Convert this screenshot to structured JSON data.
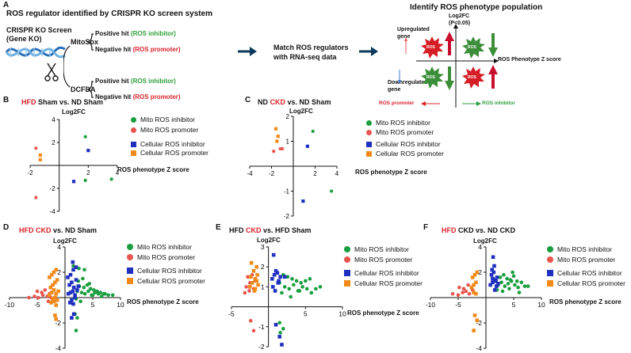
{
  "panel_a": {
    "letter": "A",
    "title": "ROS regulator identified by CRISPR KO screen system",
    "screen_label_1": "CRISPR KO Screen",
    "screen_label_2": "(Gene KO)",
    "assay_1": "MitoSox",
    "assay_2": "DCFDA",
    "pos_hit": "Positive hit",
    "neg_hit": "Negative hit",
    "inhibitor_tag": "(ROS inhibitor)",
    "promoter_tag": "(ROS promoter)",
    "match_1": "Match ROS regulators",
    "match_2": "with RNA-seq data",
    "identify_title": "Identify ROS phenotype population",
    "log2fc": "Log2FC",
    "pval": "(P<0.05)",
    "up_1": "Upregulated",
    "up_2": "gene",
    "down_1": "Downregulated",
    "down_2": "gene",
    "x_axis": "ROS Phenotype Z score",
    "ros_badge": "ROS",
    "ros_promoter": "ROS promoter",
    "ros_inhibitor": "ROS inhibitor"
  },
  "legend": {
    "mito_inhibitor": "Mito ROS inhibitor",
    "mito_promoter": "Mito ROS promoter",
    "cell_inhibitor": "Cellular ROS inhibitor",
    "cell_promoter": "Cellular ROS promoter"
  },
  "colors": {
    "mito_inhibitor": "#1a9e3f",
    "mito_promoter": "#e8554e",
    "cell_inhibitor": "#1f2fc0",
    "cell_promoter": "#f28a1a",
    "red": "#d8232a"
  },
  "panels": {
    "B": {
      "letter": "B",
      "title_a": "HFD",
      "title_b": " Sham vs. ND Sham",
      "ylabel": "Log2FC",
      "xlabel": "ROS phenotype Z score"
    },
    "C": {
      "letter": "C",
      "title_a": "ND ",
      "title_b": "CKD",
      "title_c": " vs. ND Sham",
      "ylabel": "Log2FC",
      "xlabel": "ROS phenotype Z score"
    },
    "D": {
      "letter": "D",
      "title_a": "HFD CKD",
      "title_b": " vs. ND Sham",
      "ylabel": "Log2FC",
      "xlabel": "ROS phenotype Z score"
    },
    "E": {
      "letter": "E",
      "title_a": "HFD ",
      "title_b": "CKD",
      "title_c": " vs. HFD Sham",
      "ylabel": "Log2FC",
      "xlabel": "ROS phenotype Z score"
    },
    "F": {
      "letter": "F",
      "title_a": "HFD",
      "title_b": " CKD vs. ND CKD",
      "ylabel": "Log2FC",
      "xlabel": "ROS phenotype Z score"
    }
  },
  "chart_data": [
    {
      "panel": "B",
      "type": "scatter",
      "xlim": [
        -2,
        4
      ],
      "ylim": [
        -4,
        4
      ],
      "xticks": [
        "-2",
        "2",
        "4"
      ],
      "yticks": [
        "4",
        "2",
        "-2",
        "-4"
      ],
      "series": [
        {
          "name": "Mito ROS inhibitor",
          "x": [
            1.8,
            1.8,
            3.6
          ],
          "y": [
            2.5,
            -1.3,
            -1.2
          ]
        },
        {
          "name": "Mito ROS promoter",
          "x": [
            -1.6,
            -1.6
          ],
          "y": [
            1.5,
            -2.8
          ]
        },
        {
          "name": "Cellular ROS inhibitor",
          "x": [
            2.0,
            1.0
          ],
          "y": [
            1.3,
            -1.4
          ]
        },
        {
          "name": "Cellular ROS promoter",
          "x": [
            -1.3,
            -1.3
          ],
          "y": [
            0.9,
            0.5
          ]
        }
      ]
    },
    {
      "panel": "C",
      "type": "scatter",
      "xlim": [
        -4,
        4
      ],
      "ylim": [
        -2,
        2
      ],
      "xticks": [
        "-4",
        "-2",
        "2",
        "4"
      ],
      "yticks": [
        "2",
        "1",
        "-1",
        "-2"
      ],
      "series": [
        {
          "name": "Mito ROS inhibitor",
          "x": [
            1.8,
            3.5
          ],
          "y": [
            1.4,
            -1.0
          ]
        },
        {
          "name": "Mito ROS promoter",
          "x": [
            -1.8,
            -1.2,
            -1.0
          ],
          "y": [
            0.6,
            0.7,
            0.7
          ]
        },
        {
          "name": "Cellular ROS inhibitor",
          "x": [
            1.3,
            0.9
          ],
          "y": [
            0.8,
            -1.4
          ]
        },
        {
          "name": "Cellular ROS promoter",
          "x": [
            -1.6,
            -1.4,
            -1.5
          ],
          "y": [
            1.5,
            1.2,
            1.0
          ]
        }
      ]
    },
    {
      "panel": "D",
      "type": "scatter",
      "xlim": [
        -10,
        10
      ],
      "ylim": [
        -4,
        4
      ],
      "xticks": [
        "-10",
        "-5",
        "5",
        "10"
      ],
      "yticks": [
        "4",
        "2",
        "-2",
        "-4"
      ],
      "series": [
        {
          "name": "Mito ROS inhibitor",
          "x": [
            2.2,
            3.0,
            3.6,
            4.2,
            4.8,
            5.4,
            6.0,
            6.6,
            7.2,
            7.8,
            2.6,
            3.4,
            4.0,
            4.6,
            5.2,
            5.8,
            6.4,
            7.0,
            8.6,
            2.4,
            3.2,
            4.4,
            5.0,
            2.0,
            2.8,
            1.5,
            2.5,
            3.5,
            1.8,
            2.2,
            2.0
          ],
          "y": [
            0.5,
            0.4,
            0.3,
            0.5,
            0.2,
            0.4,
            0.3,
            0.1,
            0.3,
            0.2,
            0.9,
            0.8,
            1.0,
            0.7,
            0.6,
            0.5,
            0.4,
            0.3,
            0.2,
            1.3,
            1.5,
            1.1,
            0.2,
            -0.1,
            -0.3,
            2.5,
            2.3,
            2.2,
            -1.3,
            -1.6,
            -2.6
          ]
        },
        {
          "name": "Mito ROS promoter",
          "x": [
            -6.5,
            -5.5,
            -4.8,
            -4.0,
            -3.2,
            -2.5,
            -5.0,
            -4.2,
            -3.6,
            -2.8,
            -3.0,
            -2.2
          ],
          "y": [
            0.0,
            0.1,
            0.0,
            0.2,
            0.1,
            0.0,
            0.5,
            0.4,
            0.6,
            0.3,
            -0.3,
            -0.2
          ]
        },
        {
          "name": "Cellular ROS inhibitor",
          "x": [
            0.6,
            1.0,
            1.4,
            1.8,
            2.2,
            0.8,
            1.2,
            1.6,
            2.0,
            2.4,
            0.5,
            1.0,
            1.5,
            2.0,
            1.2,
            1.8,
            0.9,
            1.5,
            1.6,
            1.2,
            1.4
          ],
          "y": [
            0.3,
            0.4,
            0.5,
            0.2,
            0.6,
            1.0,
            1.2,
            0.8,
            1.4,
            0.9,
            1.6,
            1.8,
            2.2,
            2.4,
            -0.2,
            0.0,
            -0.4,
            -0.5,
            -1.3,
            -1.6,
            2.8
          ]
        },
        {
          "name": "Cellular ROS promoter",
          "x": [
            -2.8,
            -2.4,
            -2.0,
            -1.6,
            -1.2,
            -2.6,
            -2.2,
            -1.8,
            -1.4,
            -2.8,
            -2.4,
            -2.0,
            -1.6,
            -2.2,
            -1.8,
            -1.4,
            -2.5,
            -2.0,
            -1.6,
            -1.8,
            -1.6
          ],
          "y": [
            0.2,
            0.4,
            0.6,
            0.3,
            0.5,
            0.8,
            1.0,
            1.2,
            1.4,
            1.6,
            1.8,
            2.0,
            2.2,
            -0.1,
            0.0,
            -0.2,
            -0.4,
            -0.3,
            -0.6,
            -1.4,
            -1.7
          ]
        }
      ]
    },
    {
      "panel": "E",
      "type": "scatter",
      "xlim": [
        -5,
        10
      ],
      "ylim": [
        -2,
        3
      ],
      "xticks": [
        "-5",
        "5",
        "10"
      ],
      "yticks": [
        "3",
        "2",
        "1",
        "-1",
        "-2"
      ],
      "series": [
        {
          "name": "Mito ROS inhibitor",
          "x": [
            1.5,
            2.2,
            2.8,
            3.4,
            4.0,
            4.6,
            5.2,
            5.8,
            6.4,
            7.0,
            2.0,
            2.6,
            3.2,
            3.8,
            4.4,
            5.0,
            5.6,
            1.8,
            3.0,
            4.2,
            1.5,
            2.0,
            1.6
          ],
          "y": [
            1.2,
            1.0,
            0.9,
            1.1,
            0.8,
            1.0,
            0.9,
            0.7,
            0.9,
            1.0,
            1.6,
            1.5,
            1.4,
            1.3,
            1.2,
            1.3,
            1.4,
            0.7,
            0.5,
            0.8,
            -0.8,
            -1.1,
            -1.3
          ]
        },
        {
          "name": "Mito ROS promoter",
          "x": [
            -3.0,
            -2.5,
            -2.0,
            -2.8,
            -2.2,
            -1.8,
            -3.2,
            -2.6,
            -2.4,
            -2.0
          ],
          "y": [
            1.0,
            1.2,
            0.9,
            1.5,
            1.6,
            1.3,
            0.7,
            0.8,
            -0.7,
            -1.2
          ]
        },
        {
          "name": "Cellular ROS inhibitor",
          "x": [
            0.5,
            0.8,
            1.0,
            1.3,
            1.6,
            0.6,
            0.9,
            1.2,
            0.7,
            1.4,
            2.2,
            1.0,
            1.5,
            1.8
          ],
          "y": [
            1.4,
            1.6,
            1.8,
            1.2,
            1.5,
            1.0,
            0.8,
            1.7,
            2.6,
            1.3,
            1.5,
            -0.9,
            -1.5,
            -1.9
          ]
        },
        {
          "name": "Cellular ROS promoter",
          "x": [
            -2.5,
            -2.2,
            -1.8,
            -1.5,
            -2.0,
            -1.6,
            -2.3,
            -1.9,
            -1.4,
            -2.4,
            -1.8,
            -1.6
          ],
          "y": [
            1.0,
            1.2,
            1.4,
            1.6,
            1.8,
            2.0,
            2.2,
            0.8,
            1.1,
            1.5,
            0.9,
            1.3
          ]
        }
      ]
    },
    {
      "panel": "F",
      "type": "scatter",
      "xlim": [
        -10,
        10
      ],
      "ylim": [
        -4,
        4
      ],
      "xticks": [
        "-10",
        "-5",
        "5",
        "10"
      ],
      "yticks": [
        "4",
        "2",
        "-2",
        "-4"
      ],
      "series": [
        {
          "name": "Mito ROS inhibitor",
          "x": [
            2.2,
            2.8,
            3.4,
            4.0,
            4.6,
            5.2,
            5.8,
            6.4,
            7.0,
            2.6,
            3.2,
            3.8,
            4.4,
            5.0,
            5.6,
            2.0,
            3.0,
            4.2,
            4.8,
            6.0,
            7.6
          ],
          "y": [
            1.0,
            1.2,
            0.9,
            1.1,
            1.3,
            1.0,
            0.8,
            1.2,
            0.9,
            1.6,
            1.8,
            1.5,
            1.4,
            1.7,
            1.3,
            0.6,
            0.5,
            0.7,
            2.0,
            0.4,
            0.9
          ]
        },
        {
          "name": "Mito ROS promoter",
          "x": [
            -6.0,
            -5.0,
            -4.2,
            -3.6,
            -3.0,
            -2.4,
            -4.8,
            -4.0,
            -3.2
          ],
          "y": [
            0.3,
            0.2,
            0.4,
            0.5,
            0.3,
            0.6,
            0.8,
            0.7,
            1.0
          ]
        },
        {
          "name": "Cellular ROS inhibitor",
          "x": [
            0.8,
            1.2,
            1.6,
            2.0,
            1.0,
            1.4,
            1.8,
            1.1,
            1.5,
            1.9,
            1.3,
            2.2,
            1.6,
            1.2
          ],
          "y": [
            1.0,
            1.2,
            1.4,
            1.6,
            1.8,
            2.0,
            1.3,
            2.2,
            2.5,
            0.9,
            3.2,
            1.1,
            0.6,
            1.5
          ]
        },
        {
          "name": "Cellular ROS promoter",
          "x": [
            -2.6,
            -2.2,
            -1.8,
            -2.4,
            -2.0,
            -1.6,
            -2.2,
            -1.8,
            -2.0,
            -1.6,
            -2.2
          ],
          "y": [
            0.8,
            1.0,
            1.2,
            1.6,
            1.8,
            2.0,
            0.4,
            0.3,
            -1.4,
            -1.8,
            -2.6
          ]
        }
      ]
    }
  ]
}
